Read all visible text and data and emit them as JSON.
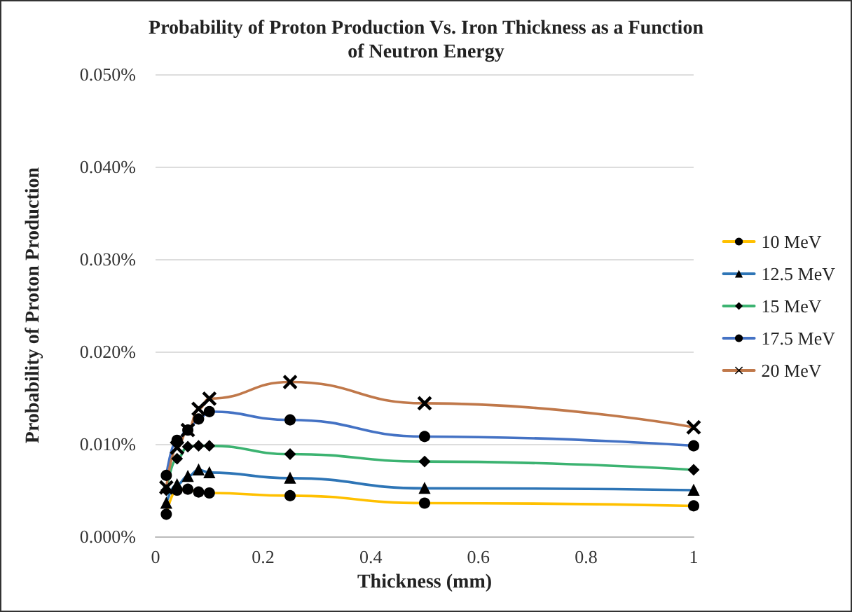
{
  "chart_data": {
    "type": "line",
    "title": "Probability of Proton Production Vs. Iron Thickness as a Function\nof Neutron Energy",
    "xlabel": "Thickness (mm)",
    "ylabel": "Probability of Proton Production",
    "x": [
      0.02,
      0.04,
      0.06,
      0.08,
      0.1,
      0.25,
      0.5,
      1
    ],
    "series": [
      {
        "name": "10 MeV",
        "color": "#ffc000",
        "marker": "circle",
        "values": [
          0.0024,
          0.005,
          0.0051,
          0.0048,
          0.0047,
          0.0044,
          0.0036,
          0.0033
        ]
      },
      {
        "name": "12.5 MeV",
        "color": "#2e75b6",
        "marker": "triangle",
        "values": [
          0.0036,
          0.0056,
          0.0065,
          0.0072,
          0.0069,
          0.0063,
          0.0052,
          0.005
        ]
      },
      {
        "name": "15 MeV",
        "color": "#3cb371",
        "marker": "diamond",
        "values": [
          0.005,
          0.0084,
          0.0097,
          0.0098,
          0.0098,
          0.0089,
          0.0081,
          0.0072
        ]
      },
      {
        "name": "17.5 MeV",
        "color": "#4472c4",
        "marker": "circle",
        "values": [
          0.0066,
          0.0104,
          0.0115,
          0.0127,
          0.0135,
          0.0126,
          0.0108,
          0.0098
        ]
      },
      {
        "name": "20 MeV",
        "color": "#c0784a",
        "marker": "cross",
        "values": [
          0.0053,
          0.0096,
          0.0115,
          0.0138,
          0.0149,
          0.0167,
          0.0144,
          0.0118
        ]
      }
    ],
    "xlim": [
      0,
      1
    ],
    "xticks": [
      0,
      0.2,
      0.4,
      0.6,
      0.8,
      1
    ],
    "ylim": [
      0,
      0.05
    ],
    "yticks": [
      {
        "value": 0,
        "label": "0.000%"
      },
      {
        "value": 0.01,
        "label": "0.010%"
      },
      {
        "value": 0.02,
        "label": "0.020%"
      },
      {
        "value": 0.03,
        "label": "0.030%"
      },
      {
        "value": 0.04,
        "label": "0.040%"
      },
      {
        "value": 0.05,
        "label": "0.050%"
      }
    ],
    "grid": "y",
    "legend": "right"
  }
}
